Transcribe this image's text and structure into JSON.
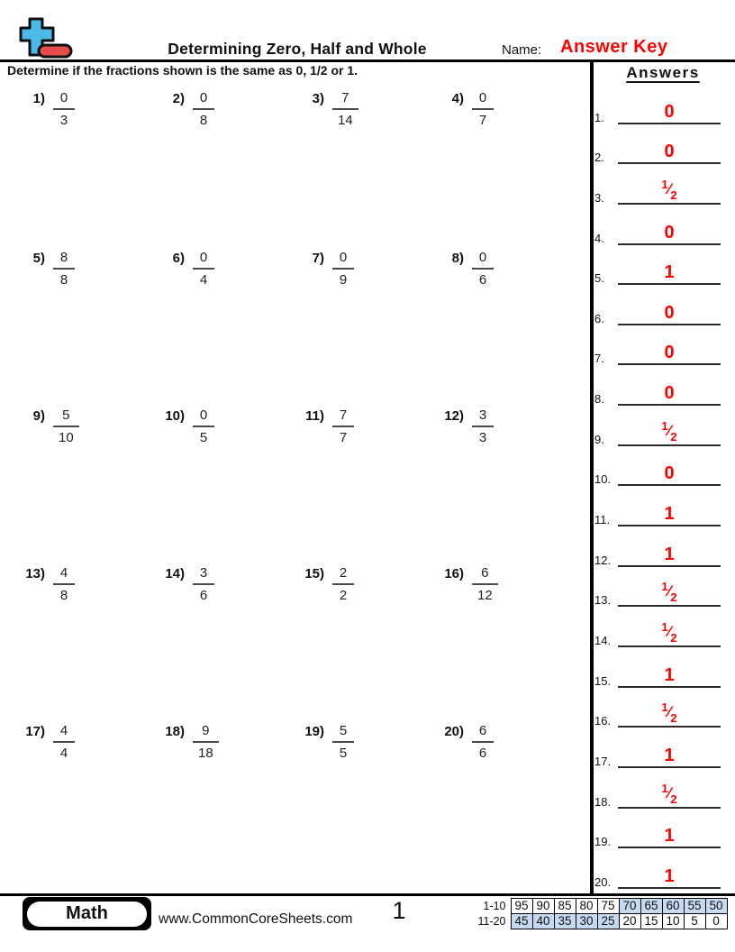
{
  "header": {
    "title": "Determining Zero, Half and Whole",
    "name_label": "Name:",
    "answer_key_label": "Answer Key",
    "instruction": "Determine if the fractions shown is the same as 0, 1/2 or 1."
  },
  "answers_panel": {
    "heading": "Answers",
    "items": [
      {
        "n": "1.",
        "value": "0"
      },
      {
        "n": "2.",
        "value": "0"
      },
      {
        "n": "3.",
        "value": "1/2"
      },
      {
        "n": "4.",
        "value": "0"
      },
      {
        "n": "5.",
        "value": "1"
      },
      {
        "n": "6.",
        "value": "0"
      },
      {
        "n": "7.",
        "value": "0"
      },
      {
        "n": "8.",
        "value": "0"
      },
      {
        "n": "9.",
        "value": "1/2"
      },
      {
        "n": "10.",
        "value": "0"
      },
      {
        "n": "11.",
        "value": "1"
      },
      {
        "n": "12.",
        "value": "1"
      },
      {
        "n": "13.",
        "value": "1/2"
      },
      {
        "n": "14.",
        "value": "1/2"
      },
      {
        "n": "15.",
        "value": "1"
      },
      {
        "n": "16.",
        "value": "1/2"
      },
      {
        "n": "17.",
        "value": "1"
      },
      {
        "n": "18.",
        "value": "1/2"
      },
      {
        "n": "19.",
        "value": "1"
      },
      {
        "n": "20.",
        "value": "1"
      }
    ]
  },
  "problems": [
    {
      "label": "1)",
      "numerator": "0",
      "denominator": "3"
    },
    {
      "label": "2)",
      "numerator": "0",
      "denominator": "8"
    },
    {
      "label": "3)",
      "numerator": "7",
      "denominator": "14"
    },
    {
      "label": "4)",
      "numerator": "0",
      "denominator": "7"
    },
    {
      "label": "5)",
      "numerator": "8",
      "denominator": "8"
    },
    {
      "label": "6)",
      "numerator": "0",
      "denominator": "4"
    },
    {
      "label": "7)",
      "numerator": "0",
      "denominator": "9"
    },
    {
      "label": "8)",
      "numerator": "0",
      "denominator": "6"
    },
    {
      "label": "9)",
      "numerator": "5",
      "denominator": "10"
    },
    {
      "label": "10)",
      "numerator": "0",
      "denominator": "5"
    },
    {
      "label": "11)",
      "numerator": "7",
      "denominator": "7"
    },
    {
      "label": "12)",
      "numerator": "3",
      "denominator": "3"
    },
    {
      "label": "13)",
      "numerator": "4",
      "denominator": "8"
    },
    {
      "label": "14)",
      "numerator": "3",
      "denominator": "6"
    },
    {
      "label": "15)",
      "numerator": "2",
      "denominator": "2"
    },
    {
      "label": "16)",
      "numerator": "6",
      "denominator": "12"
    },
    {
      "label": "17)",
      "numerator": "4",
      "denominator": "4"
    },
    {
      "label": "18)",
      "numerator": "9",
      "denominator": "18"
    },
    {
      "label": "19)",
      "numerator": "5",
      "denominator": "5"
    },
    {
      "label": "20)",
      "numerator": "6",
      "denominator": "6"
    }
  ],
  "footer": {
    "subject": "Math",
    "website": "www.CommonCoreSheets.com",
    "page_number": "1",
    "grade_table": {
      "rows": [
        {
          "label": "1-10",
          "cells": [
            {
              "v": "95",
              "shaded": false
            },
            {
              "v": "90",
              "shaded": false
            },
            {
              "v": "85",
              "shaded": false
            },
            {
              "v": "80",
              "shaded": false
            },
            {
              "v": "75",
              "shaded": false
            },
            {
              "v": "70",
              "shaded": true
            },
            {
              "v": "65",
              "shaded": true
            },
            {
              "v": "60",
              "shaded": true
            },
            {
              "v": "55",
              "shaded": true
            },
            {
              "v": "50",
              "shaded": true
            }
          ]
        },
        {
          "label": "11-20",
          "cells": [
            {
              "v": "45",
              "shaded": true
            },
            {
              "v": "40",
              "shaded": true
            },
            {
              "v": "35",
              "shaded": true
            },
            {
              "v": "30",
              "shaded": true
            },
            {
              "v": "25",
              "shaded": true
            },
            {
              "v": "20",
              "shaded": false
            },
            {
              "v": "15",
              "shaded": false
            },
            {
              "v": "10",
              "shaded": false
            },
            {
              "v": "5",
              "shaded": false
            },
            {
              "v": "0",
              "shaded": false
            }
          ]
        }
      ]
    }
  },
  "colors": {
    "accent_red": "#fe0000",
    "shaded_cell_blue": "#c5d9f1",
    "icon_blue": "#4db9e6",
    "icon_red": "#e64c4c"
  }
}
